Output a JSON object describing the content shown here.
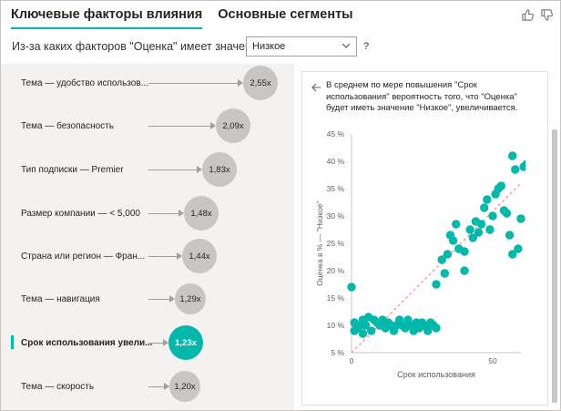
{
  "tabs": [
    {
      "label": "Ключевые факторы влияния",
      "active": true
    },
    {
      "label": "Основные сегменты",
      "active": false
    }
  ],
  "icons": {
    "like": "thumbs-up-icon",
    "dislike": "thumbs-down-icon",
    "back": "back-arrow-icon",
    "dropdown": "chevron-down-icon"
  },
  "question": {
    "text": "Из-за каких факторов \"Оценка\" имеет значение",
    "selected_value": "Низкое",
    "help": "?"
  },
  "colors": {
    "accent": "#01b8aa",
    "bubble": "#c8c6c4",
    "panel_bg": "#f3f2f1",
    "trend": "#f28b8b"
  },
  "factors": [
    {
      "label": "Тема — удобство использов...",
      "value": "2,55x",
      "selected": false
    },
    {
      "label": "Тема — безопасность",
      "value": "2,09x",
      "selected": false
    },
    {
      "label": "Тип подписки — Premier",
      "value": "1,83x",
      "selected": false
    },
    {
      "label": "Размер компании — < 5,000",
      "value": "1,48x",
      "selected": false
    },
    {
      "label": "Страна или регион — Фран...",
      "value": "1,44x",
      "selected": false
    },
    {
      "label": "Тема — навигация",
      "value": "1,29x",
      "selected": false
    },
    {
      "label": "Срок использования увели...",
      "value": "1,23x",
      "selected": true
    },
    {
      "label": "Тема — скорость",
      "value": "1,20x",
      "selected": false
    }
  ],
  "explanation": "В среднем по мере повышения \"Срок использования\" вероятность того, что \"Оценка\" будет иметь значение \"Низкое\", увеличивается.",
  "chart_data": {
    "type": "scatter",
    "xlabel": "Срок использования",
    "ylabel": "Оценка в % — \"Низкое\"",
    "xlim": [
      0,
      60
    ],
    "ylim": [
      5,
      45
    ],
    "x_ticks": [
      {
        "v": 0,
        "label": "0"
      },
      {
        "v": 50,
        "label": "50"
      }
    ],
    "y_ticks": [
      {
        "v": 5,
        "label": "5 %"
      },
      {
        "v": 10,
        "label": "10 %"
      },
      {
        "v": 15,
        "label": "15 %"
      },
      {
        "v": 20,
        "label": "20 %"
      },
      {
        "v": 25,
        "label": "25 %"
      },
      {
        "v": 30,
        "label": "30 %"
      },
      {
        "v": 35,
        "label": "35 %"
      },
      {
        "v": 40,
        "label": "40 %"
      },
      {
        "v": 45,
        "label": "45 %"
      }
    ],
    "grid": false,
    "trendline": {
      "x": [
        0,
        60
      ],
      "y": [
        5,
        36
      ]
    },
    "points": [
      [
        0,
        17
      ],
      [
        1,
        10.5
      ],
      [
        1,
        9
      ],
      [
        2,
        9.5
      ],
      [
        3,
        10
      ],
      [
        4,
        8.5
      ],
      [
        4,
        11
      ],
      [
        5,
        10
      ],
      [
        6,
        11.5
      ],
      [
        7,
        9
      ],
      [
        8,
        11
      ],
      [
        9,
        10.5
      ],
      [
        10,
        10
      ],
      [
        11,
        11
      ],
      [
        12,
        9.5
      ],
      [
        13,
        10.5
      ],
      [
        14,
        10
      ],
      [
        15,
        9
      ],
      [
        16,
        10
      ],
      [
        17,
        11
      ],
      [
        18,
        10
      ],
      [
        19,
        9.5
      ],
      [
        20,
        11
      ],
      [
        21,
        10
      ],
      [
        22,
        9
      ],
      [
        23,
        10.5
      ],
      [
        24,
        9.5
      ],
      [
        25,
        10.5
      ],
      [
        26,
        10
      ],
      [
        27,
        9
      ],
      [
        28,
        10.5
      ],
      [
        29,
        10
      ],
      [
        30,
        9.5
      ],
      [
        30,
        17.5
      ],
      [
        32,
        22
      ],
      [
        33,
        19.5
      ],
      [
        34,
        23
      ],
      [
        35,
        26.5
      ],
      [
        36,
        25.5
      ],
      [
        37,
        28.5
      ],
      [
        38,
        24
      ],
      [
        40,
        20
      ],
      [
        40,
        23.5
      ],
      [
        42,
        27.5
      ],
      [
        43,
        26
      ],
      [
        44,
        29
      ],
      [
        45,
        27
      ],
      [
        46,
        28.5
      ],
      [
        47,
        31.5
      ],
      [
        48,
        33
      ],
      [
        49,
        27.5
      ],
      [
        50,
        30
      ],
      [
        51,
        34
      ],
      [
        52,
        35
      ],
      [
        53,
        35.5
      ],
      [
        54,
        31
      ],
      [
        55,
        30.5
      ],
      [
        56,
        26.5
      ],
      [
        57,
        41
      ],
      [
        57,
        23
      ],
      [
        58,
        38.5
      ],
      [
        59,
        24
      ],
      [
        60,
        29.5
      ],
      [
        61,
        39
      ],
      [
        62,
        39.5
      ]
    ]
  }
}
